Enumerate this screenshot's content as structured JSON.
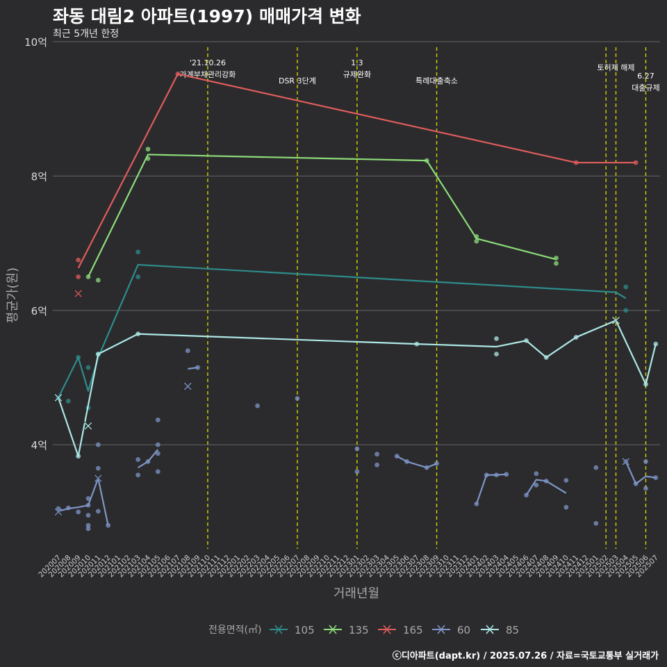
{
  "chart_data": {
    "type": "line",
    "title": "좌동 대림2 아파트(1997) 매매가격 변화",
    "subtitle": "최근 5개년 한정",
    "xlabel": "거래년월",
    "ylabel": "평균가(원)",
    "ylim": [
      2.45,
      10
    ],
    "y_ticks": [
      {
        "value": 4,
        "label": "4억"
      },
      {
        "value": 6,
        "label": "6억"
      },
      {
        "value": 8,
        "label": "8억"
      },
      {
        "value": 10,
        "label": "10억"
      }
    ],
    "x_start": "202007",
    "x_end": "202507",
    "legend_title": "전용면적(㎡)",
    "legend_position": "bottom",
    "footer": "ⓒ디아파트(dapt.kr) / 2025.07.26 / 자료=국토교통부 실거래가",
    "events": [
      {
        "month": "202110",
        "label_lines": [
          "'21.10.26",
          "가계부채관리강화"
        ]
      },
      {
        "month": "202207",
        "label_lines": [
          "DSR 3단계"
        ]
      },
      {
        "month": "202301",
        "label_lines": [
          "1.3",
          "규제완화"
        ]
      },
      {
        "month": "202309",
        "label_lines": [
          "특례대출축소"
        ]
      },
      {
        "month": "202502",
        "label_lines": [
          ""
        ]
      },
      {
        "month": "202503",
        "label_lines": [
          "토허제 해제"
        ]
      },
      {
        "month": "202506",
        "label_lines": [
          "6.27",
          "대출규제"
        ]
      }
    ],
    "series": [
      {
        "name": "105",
        "color": "#2e8c8c",
        "line": [
          [
            "202007",
            4.7
          ],
          [
            "202009",
            5.3
          ],
          [
            "202010",
            4.8
          ],
          [
            "202011",
            5.3
          ],
          [
            "202103",
            6.68
          ],
          [
            "202503",
            6.27
          ],
          [
            "202504",
            6.18
          ]
        ],
        "points": [
          [
            "202007",
            4.7
          ],
          [
            "202008",
            4.65
          ],
          [
            "202009",
            5.3
          ],
          [
            "202010",
            5.15
          ],
          [
            "202010",
            4.55
          ],
          [
            "202011",
            5.35
          ],
          [
            "202103",
            6.87
          ],
          [
            "202103",
            6.5
          ],
          [
            "202504",
            6.35
          ],
          [
            "202504",
            6.0
          ]
        ],
        "crosses": []
      },
      {
        "name": "135",
        "color": "#8ddd7a",
        "line": [
          [
            "202010",
            6.5
          ],
          [
            "202104",
            8.32
          ],
          [
            "202308",
            8.23
          ],
          [
            "202401",
            7.07
          ],
          [
            "202409",
            6.76
          ]
        ],
        "points": [
          [
            "202010",
            6.5
          ],
          [
            "202011",
            6.45
          ],
          [
            "202104",
            8.4
          ],
          [
            "202104",
            8.26
          ],
          [
            "202308",
            8.23
          ],
          [
            "202401",
            7.1
          ],
          [
            "202401",
            7.03
          ],
          [
            "202409",
            6.78
          ],
          [
            "202409",
            6.7
          ]
        ],
        "crosses": []
      },
      {
        "name": "165",
        "color": "#e05c5c",
        "line": [
          [
            "202009",
            6.63
          ],
          [
            "202107",
            9.52
          ],
          [
            "202411",
            8.2
          ],
          [
            "202505",
            8.2
          ]
        ],
        "points": [
          [
            "202009",
            6.75
          ],
          [
            "202009",
            6.5
          ],
          [
            "202107",
            9.52
          ],
          [
            "202411",
            8.2
          ],
          [
            "202505",
            8.2
          ]
        ],
        "crosses": [
          [
            "202009",
            6.25
          ]
        ]
      },
      {
        "name": "60",
        "color": "#7f96c8",
        "line": [
          [
            [
              "202007",
              3.01
            ],
            [
              "202008",
              3.05
            ],
            [
              "202009",
              3.07
            ],
            [
              "202010",
              3.1
            ],
            [
              "202011",
              3.5
            ],
            [
              "202012",
              2.8
            ]
          ],
          [
            [
              "202103",
              3.66
            ],
            [
              "202104",
              3.75
            ],
            [
              "202105",
              3.93
            ]
          ],
          [
            [
              "202108",
              5.13
            ],
            [
              "202109",
              5.15
            ]
          ],
          [
            [
              "202305",
              3.83
            ],
            [
              "202306",
              3.75
            ],
            [
              "202308",
              3.66
            ],
            [
              "202309",
              3.72
            ]
          ],
          [
            [
              "202401",
              3.12
            ],
            [
              "202402",
              3.55
            ],
            [
              "202403",
              3.55
            ],
            [
              "202404",
              3.56
            ]
          ],
          [
            [
              "202406",
              3.25
            ],
            [
              "202407",
              3.48
            ],
            [
              "202408",
              3.46
            ],
            [
              "202410",
              3.28
            ]
          ],
          [
            [
              "202504",
              3.75
            ],
            [
              "202505",
              3.42
            ],
            [
              "202506",
              3.53
            ],
            [
              "202507",
              3.51
            ]
          ]
        ],
        "points": [
          [
            "202007",
            3.05
          ],
          [
            "202008",
            3.06
          ],
          [
            "202009",
            3.0
          ],
          [
            "202010",
            3.2
          ],
          [
            "202010",
            3.1
          ],
          [
            "202010",
            2.95
          ],
          [
            "202010",
            2.8
          ],
          [
            "202010",
            2.75
          ],
          [
            "202011",
            3.65
          ],
          [
            "202011",
            4.0
          ],
          [
            "202011",
            3.01
          ],
          [
            "202012",
            2.8
          ],
          [
            "202103",
            3.78
          ],
          [
            "202103",
            3.55
          ],
          [
            "202104",
            3.75
          ],
          [
            "202105",
            4.37
          ],
          [
            "202105",
            4.0
          ],
          [
            "202105",
            3.87
          ],
          [
            "202105",
            3.6
          ],
          [
            "202108",
            5.4
          ],
          [
            "202109",
            5.15
          ],
          [
            "202203",
            4.58
          ],
          [
            "202207",
            4.69
          ],
          [
            "202301",
            3.94
          ],
          [
            "202301",
            3.6
          ],
          [
            "202303",
            3.86
          ],
          [
            "202303",
            3.7
          ],
          [
            "202305",
            3.83
          ],
          [
            "202306",
            3.75
          ],
          [
            "202308",
            3.66
          ],
          [
            "202309",
            3.72
          ],
          [
            "202401",
            3.12
          ],
          [
            "202402",
            3.55
          ],
          [
            "202403",
            3.55
          ],
          [
            "202404",
            3.56
          ],
          [
            "202406",
            3.25
          ],
          [
            "202407",
            3.57
          ],
          [
            "202407",
            3.4
          ],
          [
            "202408",
            3.46
          ],
          [
            "202410",
            3.47
          ],
          [
            "202410",
            3.07
          ],
          [
            "202501",
            3.66
          ],
          [
            "202501",
            2.83
          ],
          [
            "202504",
            3.75
          ],
          [
            "202505",
            3.42
          ],
          [
            "202506",
            3.75
          ],
          [
            "202506",
            3.35
          ],
          [
            "202507",
            3.51
          ]
        ],
        "crosses": [
          [
            "202007",
            3.0
          ],
          [
            "202011",
            3.5
          ],
          [
            "202108",
            4.87
          ],
          [
            "202504",
            3.75
          ]
        ]
      },
      {
        "name": "85",
        "color": "#aee8e6",
        "line": [
          [
            "202007",
            4.7
          ],
          [
            "202009",
            3.83
          ],
          [
            "202011",
            5.35
          ],
          [
            "202103",
            5.65
          ],
          [
            "202307",
            5.5
          ],
          [
            "202403",
            5.46
          ],
          [
            "202406",
            5.55
          ],
          [
            "202408",
            5.3
          ],
          [
            "202411",
            5.6
          ],
          [
            "202503",
            5.85
          ],
          [
            "202506",
            4.9
          ],
          [
            "202507",
            5.5
          ]
        ],
        "points": [
          [
            "202009",
            3.83
          ],
          [
            "202011",
            5.35
          ],
          [
            "202103",
            5.65
          ],
          [
            "202307",
            5.5
          ],
          [
            "202403",
            5.35
          ],
          [
            "202403",
            5.58
          ],
          [
            "202406",
            5.55
          ],
          [
            "202408",
            5.3
          ],
          [
            "202411",
            5.6
          ],
          [
            "202506",
            4.9
          ],
          [
            "202507",
            5.5
          ]
        ],
        "crosses": [
          [
            "202007",
            4.7
          ],
          [
            "202010",
            4.28
          ],
          [
            "202503",
            5.85
          ]
        ]
      }
    ]
  }
}
